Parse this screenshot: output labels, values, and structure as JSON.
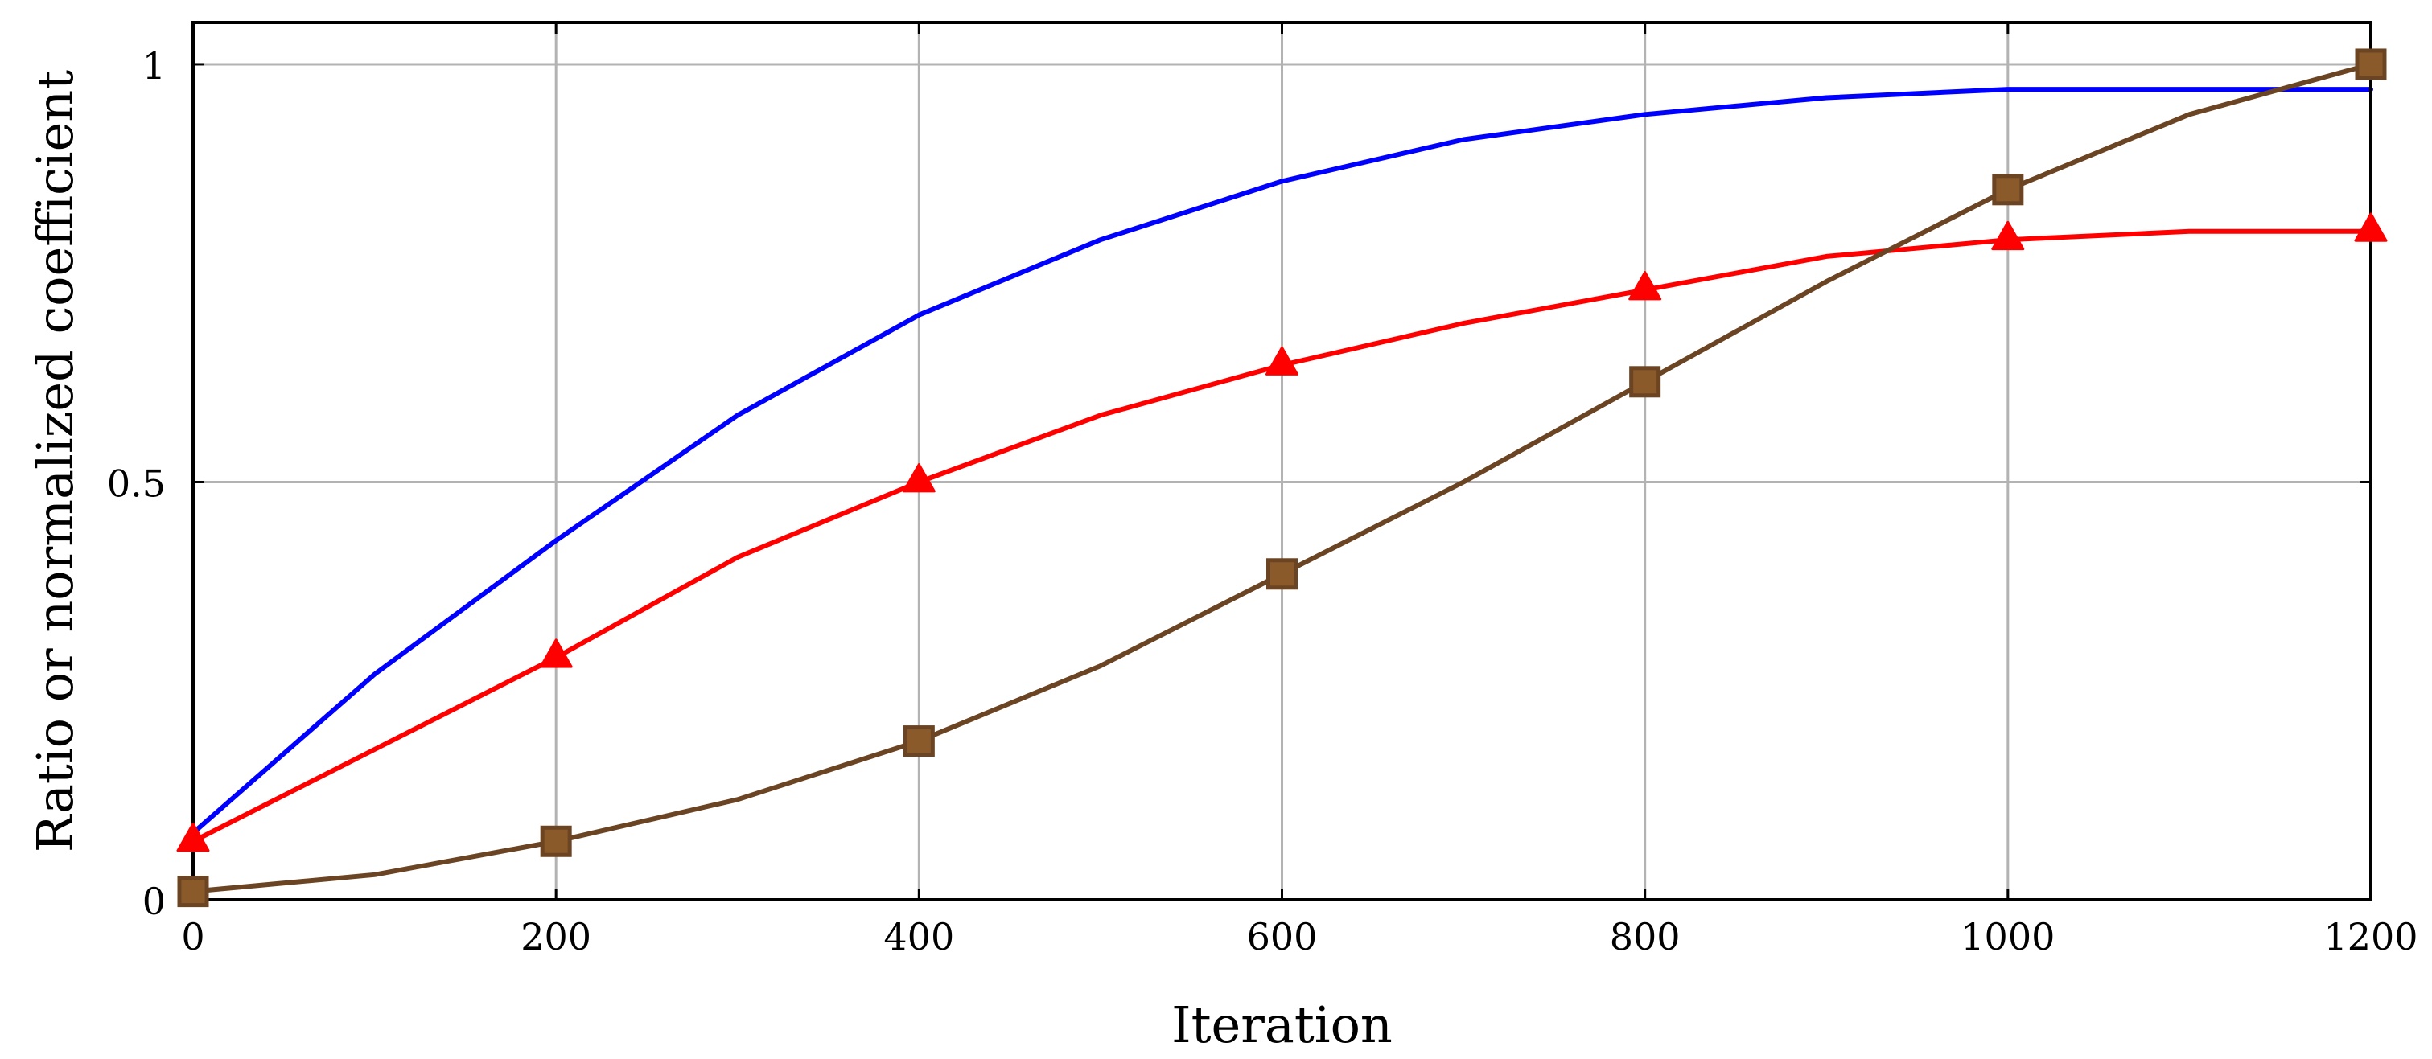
{
  "chart_data": {
    "type": "line",
    "title": "",
    "xlabel": "Iteration",
    "ylabel": "Ratio or normalized coefficient",
    "xlim": [
      0,
      1200
    ],
    "ylim": [
      0,
      1.05
    ],
    "grid": true,
    "x_ticks": [
      0,
      200,
      400,
      600,
      800,
      1000,
      1200
    ],
    "x_tick_labels": [
      "0",
      "200",
      "400",
      "600",
      "800",
      "1000",
      "1200"
    ],
    "y_ticks": [
      0,
      0.5,
      1
    ],
    "y_tick_labels": [
      "0",
      "0.5",
      "1"
    ],
    "series": [
      {
        "color": "#0000ff",
        "marker": "none",
        "x": [
          0,
          100,
          200,
          300,
          400,
          500,
          600,
          700,
          800,
          900,
          1000,
          1100,
          1200
        ],
        "y": [
          0.08,
          0.27,
          0.43,
          0.58,
          0.7,
          0.79,
          0.86,
          0.91,
          0.94,
          0.96,
          0.97,
          0.97,
          0.97
        ],
        "marker_x": []
      },
      {
        "color": "#ff0000",
        "marker": "triangle",
        "x": [
          0,
          100,
          200,
          300,
          400,
          500,
          600,
          700,
          800,
          900,
          1000,
          1100,
          1200
        ],
        "y": [
          0.07,
          0.18,
          0.29,
          0.41,
          0.5,
          0.58,
          0.64,
          0.69,
          0.73,
          0.77,
          0.79,
          0.8,
          0.8
        ],
        "marker_x": [
          0,
          200,
          400,
          600,
          800,
          1000,
          1200
        ]
      },
      {
        "color": "#6b4423",
        "marker_fill": "#8b5a2b",
        "marker": "square",
        "x": [
          0,
          100,
          200,
          300,
          400,
          500,
          600,
          700,
          800,
          900,
          1000,
          1100,
          1200
        ],
        "y": [
          0.01,
          0.03,
          0.07,
          0.12,
          0.19,
          0.28,
          0.39,
          0.5,
          0.62,
          0.74,
          0.85,
          0.94,
          1.0
        ],
        "marker_x": [
          0,
          200,
          400,
          600,
          800,
          1000,
          1200
        ]
      }
    ]
  }
}
